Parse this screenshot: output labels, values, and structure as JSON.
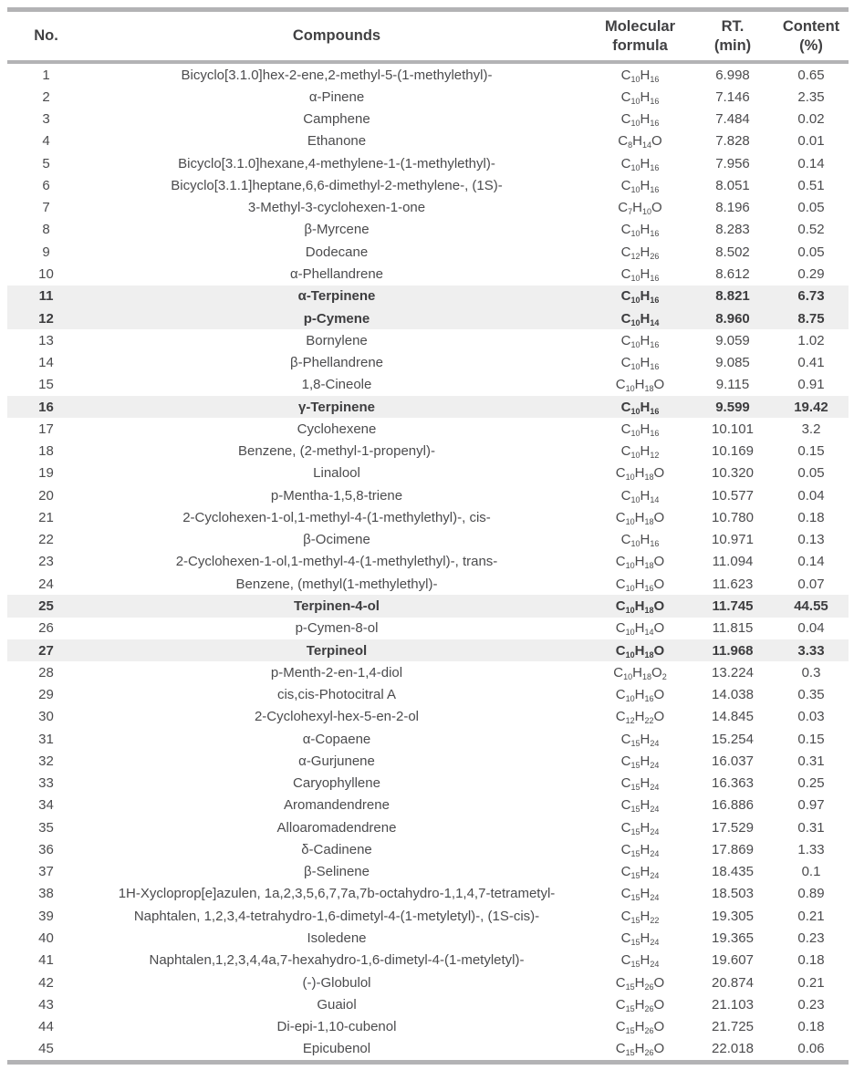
{
  "table": {
    "header": {
      "no": "No.",
      "compounds": "Compounds",
      "formula_line1": "Molecular",
      "formula_line2": "formula",
      "rt_line1": "RT.",
      "rt_line2": "(min)",
      "content_line1": "Content",
      "content_line2": "(%)"
    },
    "rows": [
      {
        "no": "1",
        "compound": "Bicyclo[3.1.0]hex-2-ene,2-methyl-5-(1-methylethyl)-",
        "formula": "C10H16",
        "rt": "6.998",
        "content": "0.65",
        "highlight": false
      },
      {
        "no": "2",
        "compound": "α-Pinene",
        "formula": "C10H16",
        "rt": "7.146",
        "content": "2.35",
        "highlight": false
      },
      {
        "no": "3",
        "compound": "Camphene",
        "formula": "C10H16",
        "rt": "7.484",
        "content": "0.02",
        "highlight": false
      },
      {
        "no": "4",
        "compound": "Ethanone",
        "formula": "C8H14O",
        "rt": "7.828",
        "content": "0.01",
        "highlight": false
      },
      {
        "no": "5",
        "compound": "Bicyclo[3.1.0]hexane,4-methylene-1-(1-methylethyl)-",
        "formula": "C10H16",
        "rt": "7.956",
        "content": "0.14",
        "highlight": false
      },
      {
        "no": "6",
        "compound": "Bicyclo[3.1.1]heptane,6,6-dimethyl-2-methylene-, (1S)-",
        "formula": "C10H16",
        "rt": "8.051",
        "content": "0.51",
        "highlight": false
      },
      {
        "no": "7",
        "compound": "3-Methyl-3-cyclohexen-1-one",
        "formula": "C7H10O",
        "rt": "8.196",
        "content": "0.05",
        "highlight": false
      },
      {
        "no": "8",
        "compound": "β-Myrcene",
        "formula": "C10H16",
        "rt": "8.283",
        "content": "0.52",
        "highlight": false
      },
      {
        "no": "9",
        "compound": "Dodecane",
        "formula": "C12H26",
        "rt": "8.502",
        "content": "0.05",
        "highlight": false
      },
      {
        "no": "10",
        "compound": "α-Phellandrene",
        "formula": "C10H16",
        "rt": "8.612",
        "content": "0.29",
        "highlight": false
      },
      {
        "no": "11",
        "compound": "α-Terpinene",
        "formula": "C10H16",
        "rt": "8.821",
        "content": "6.73",
        "highlight": true
      },
      {
        "no": "12",
        "compound": "p-Cymene",
        "formula": "C10H14",
        "rt": "8.960",
        "content": "8.75",
        "highlight": true
      },
      {
        "no": "13",
        "compound": "Bornylene",
        "formula": "C10H16",
        "rt": "9.059",
        "content": "1.02",
        "highlight": false
      },
      {
        "no": "14",
        "compound": "β-Phellandrene",
        "formula": "C10H16",
        "rt": "9.085",
        "content": "0.41",
        "highlight": false
      },
      {
        "no": "15",
        "compound": "1,8-Cineole",
        "formula": "C10H18O",
        "rt": "9.115",
        "content": "0.91",
        "highlight": false
      },
      {
        "no": "16",
        "compound": "γ-Terpinene",
        "formula": "C10H16",
        "rt": "9.599",
        "content": "19.42",
        "highlight": true
      },
      {
        "no": "17",
        "compound": "Cyclohexene",
        "formula": "C10H16",
        "rt": "10.101",
        "content": "3.2",
        "highlight": false
      },
      {
        "no": "18",
        "compound": "Benzene, (2-methyl-1-propenyl)-",
        "formula": "C10H12",
        "rt": "10.169",
        "content": "0.15",
        "highlight": false
      },
      {
        "no": "19",
        "compound": "Linalool",
        "formula": "C10H18O",
        "rt": "10.320",
        "content": "0.05",
        "highlight": false
      },
      {
        "no": "20",
        "compound": "p-Mentha-1,5,8-triene",
        "formula": "C10H14",
        "rt": "10.577",
        "content": "0.04",
        "highlight": false
      },
      {
        "no": "21",
        "compound": "2-Cyclohexen-1-ol,1-methyl-4-(1-methylethyl)-, cis-",
        "formula": "C10H18O",
        "rt": "10.780",
        "content": "0.18",
        "highlight": false
      },
      {
        "no": "22",
        "compound": "β-Ocimene",
        "formula": "C10H16",
        "rt": "10.971",
        "content": "0.13",
        "highlight": false
      },
      {
        "no": "23",
        "compound": "2-Cyclohexen-1-ol,1-methyl-4-(1-methylethyl)-, trans-",
        "formula": "C10H18O",
        "rt": "11.094",
        "content": "0.14",
        "highlight": false
      },
      {
        "no": "24",
        "compound": "Benzene, (methyl(1-methylethyl)-",
        "formula": "C10H16O",
        "rt": "11.623",
        "content": "0.07",
        "highlight": false
      },
      {
        "no": "25",
        "compound": "Terpinen-4-ol",
        "formula": "C10H18O",
        "rt": "11.745",
        "content": "44.55",
        "highlight": true
      },
      {
        "no": "26",
        "compound": "p-Cymen-8-ol",
        "formula": "C10H14O",
        "rt": "11.815",
        "content": "0.04",
        "highlight": false
      },
      {
        "no": "27",
        "compound": "Terpineol",
        "formula": "C10H18O",
        "rt": "11.968",
        "content": "3.33",
        "highlight": true
      },
      {
        "no": "28",
        "compound": "p-Menth-2-en-1,4-diol",
        "formula": "C10H18O2",
        "rt": "13.224",
        "content": "0.3",
        "highlight": false
      },
      {
        "no": "29",
        "compound": "cis,cis-Photocitral A",
        "formula": "C10H16O",
        "rt": "14.038",
        "content": "0.35",
        "highlight": false
      },
      {
        "no": "30",
        "compound": "2-Cyclohexyl-hex-5-en-2-ol",
        "formula": "C12H22O",
        "rt": "14.845",
        "content": "0.03",
        "highlight": false
      },
      {
        "no": "31",
        "compound": "α-Copaene",
        "formula": "C15H24",
        "rt": "15.254",
        "content": "0.15",
        "highlight": false
      },
      {
        "no": "32",
        "compound": "α-Gurjunene",
        "formula": "C15H24",
        "rt": "16.037",
        "content": "0.31",
        "highlight": false
      },
      {
        "no": "33",
        "compound": "Caryophyllene",
        "formula": "C15H24",
        "rt": "16.363",
        "content": "0.25",
        "highlight": false
      },
      {
        "no": "34",
        "compound": "Aromandendrene",
        "formula": "C15H24",
        "rt": "16.886",
        "content": "0.97",
        "highlight": false
      },
      {
        "no": "35",
        "compound": "Alloaromadendrene",
        "formula": "C15H24",
        "rt": "17.529",
        "content": "0.31",
        "highlight": false
      },
      {
        "no": "36",
        "compound": "δ-Cadinene",
        "formula": "C15H24",
        "rt": "17.869",
        "content": "1.33",
        "highlight": false
      },
      {
        "no": "37",
        "compound": "β-Selinene",
        "formula": "C15H24",
        "rt": "18.435",
        "content": "0.1",
        "highlight": false
      },
      {
        "no": "38",
        "compound": "1H-Xycloprop[e]azulen, 1a,2,3,5,6,7,7a,7b-octahydro-1,1,4,7-tetrametyl-",
        "formula": "C15H24",
        "rt": "18.503",
        "content": "0.89",
        "highlight": false
      },
      {
        "no": "39",
        "compound": "Naphtalen, 1,2,3,4-tetrahydro-1,6-dimetyl-4-(1-metyletyl)-, (1S-cis)-",
        "formula": "C15H22",
        "rt": "19.305",
        "content": "0.21",
        "highlight": false
      },
      {
        "no": "40",
        "compound": "Isoledene",
        "formula": "C15H24",
        "rt": "19.365",
        "content": "0.23",
        "highlight": false
      },
      {
        "no": "41",
        "compound": "Naphtalen,1,2,3,4,4a,7-hexahydro-1,6-dimetyl-4-(1-metyletyl)-",
        "formula": "C15H24",
        "rt": "19.607",
        "content": "0.18",
        "highlight": false
      },
      {
        "no": "42",
        "compound": "(-)-Globulol",
        "formula": "C15H26O",
        "rt": "20.874",
        "content": "0.21",
        "highlight": false
      },
      {
        "no": "43",
        "compound": "Guaiol",
        "formula": "C15H26O",
        "rt": "21.103",
        "content": "0.23",
        "highlight": false
      },
      {
        "no": "44",
        "compound": "Di-epi-1,10-cubenol",
        "formula": "C15H26O",
        "rt": "21.725",
        "content": "0.18",
        "highlight": false
      },
      {
        "no": "45",
        "compound": "Epicubenol",
        "formula": "C15H26O",
        "rt": "22.018",
        "content": "0.06",
        "highlight": false
      }
    ]
  },
  "colors": {
    "highlight_bg": "#efefef",
    "rule_gray": "#b3b3b5",
    "text_gray": "#4b4b4d"
  }
}
